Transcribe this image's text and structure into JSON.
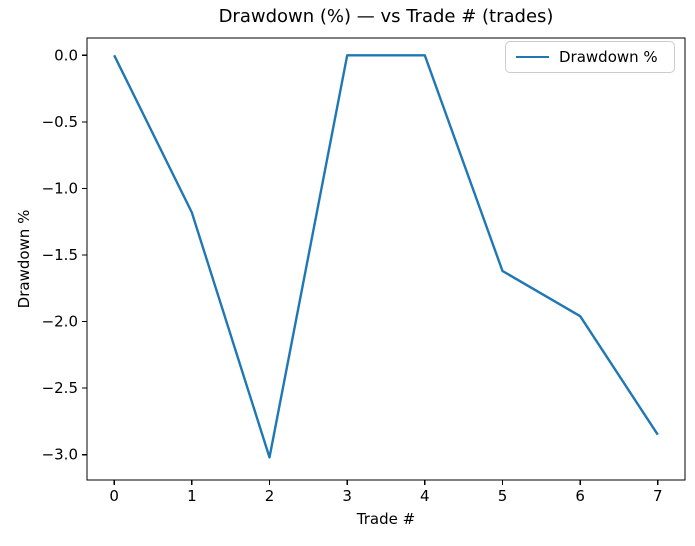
{
  "chart_data": {
    "type": "line",
    "title": "Drawdown (%) — vs Trade # (trades)",
    "xlabel": "Trade #",
    "ylabel": "Drawdown %",
    "legend_position": "upper right",
    "legend": [
      {
        "label": "Drawdown %",
        "color": "#1f77b4"
      }
    ],
    "x": [
      0,
      1,
      2,
      3,
      4,
      5,
      6,
      7
    ],
    "series": [
      {
        "name": "Drawdown %",
        "values": [
          0.0,
          -1.18,
          -3.02,
          0.0,
          0.0,
          -1.62,
          -1.96,
          -2.85
        ],
        "color": "#1f77b4"
      }
    ],
    "xticks": [
      0,
      1,
      2,
      3,
      4,
      5,
      6,
      7
    ],
    "xtick_labels": [
      "0",
      "1",
      "2",
      "3",
      "4",
      "5",
      "6",
      "7"
    ],
    "yticks": [
      0.0,
      -0.5,
      -1.0,
      -1.5,
      -2.0,
      -2.5,
      -3.0
    ],
    "ytick_labels": [
      "0.0",
      "−0.5",
      "−1.0",
      "−1.5",
      "−2.0",
      "−2.5",
      "−3.0"
    ],
    "xlim": [
      -0.35,
      7.35
    ],
    "ylim": [
      -3.19,
      0.13
    ],
    "grid": false,
    "axis_color": "#000000",
    "background_color": "#ffffff"
  }
}
